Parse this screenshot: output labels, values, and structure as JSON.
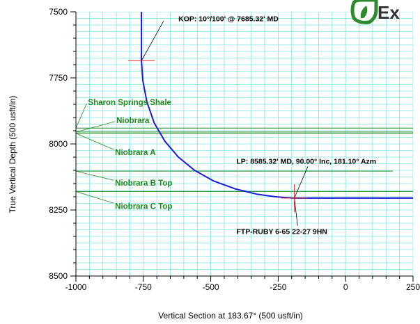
{
  "chart_data": {
    "type": "line",
    "xlabel": "Vertical Section at 183.67° (500 usft/in)",
    "ylabel": "True Vertical Depth (500 usft/in)",
    "xlim": [
      -1000,
      250
    ],
    "ylim": [
      8500,
      7500
    ],
    "x_ticks": [
      -1000,
      -750,
      -500,
      -250,
      0,
      250
    ],
    "y_ticks": [
      7500,
      7750,
      8000,
      8250,
      8500
    ],
    "series": [
      {
        "values": [
          {
            "x": -757,
            "y": 7500
          },
          {
            "x": -757,
            "y": 7685.32
          },
          {
            "x": -752,
            "y": 7760
          },
          {
            "x": -737,
            "y": 7840
          },
          {
            "x": -710,
            "y": 7920
          },
          {
            "x": -670,
            "y": 7990
          },
          {
            "x": -620,
            "y": 8050
          },
          {
            "x": -560,
            "y": 8100
          },
          {
            "x": -490,
            "y": 8140
          },
          {
            "x": -410,
            "y": 8170
          },
          {
            "x": -330,
            "y": 8190
          },
          {
            "x": -260,
            "y": 8200
          },
          {
            "x": -195,
            "y": 8205
          },
          {
            "x": 250,
            "y": 8205
          }
        ]
      }
    ],
    "formations": [
      {
        "label": "Sharon Springs Shale",
        "tvd": 7940,
        "line_end_x": 250,
        "label_x": -955,
        "label_y": 7842
      },
      {
        "label": "Niobrara",
        "tvd": 7955,
        "line_end_x": 250,
        "label_x": -850,
        "label_y": 7910
      },
      {
        "label": "Niobrara A",
        "tvd": 7960,
        "line_end_x": 250,
        "label_x": -855,
        "label_y": 8032
      },
      {
        "label": "Niobrara B Top",
        "tvd": 8103,
        "line_end_x": 175,
        "label_x": -855,
        "label_y": 8148
      },
      {
        "label": "Niobrara C Top",
        "tvd": 8180,
        "line_end_x": 250,
        "label_x": -855,
        "label_y": 8235
      }
    ],
    "annotations": [
      {
        "text": "KOP: 10°/100' @ 7685.32' MD",
        "x": -757,
        "y": 7685,
        "label_x": -620,
        "label_y": 7525,
        "leader_to": [
          -675,
          7535
        ]
      },
      {
        "text": "LP:  8585.32' MD, 90.00° Inc, 181.10° Azm",
        "x": -190,
        "y": 8205,
        "label_x": -405,
        "label_y": 8065,
        "leader_to": [
          -140,
          8085
        ]
      },
      {
        "text": "FTP-RUBY 6-65 22-27 9HN",
        "x": -190,
        "y": 8205,
        "label_x": -405,
        "label_y": 8330,
        "leader_to": [
          -178,
          8310
        ]
      }
    ],
    "grid": true,
    "logo_text": "Ex"
  }
}
